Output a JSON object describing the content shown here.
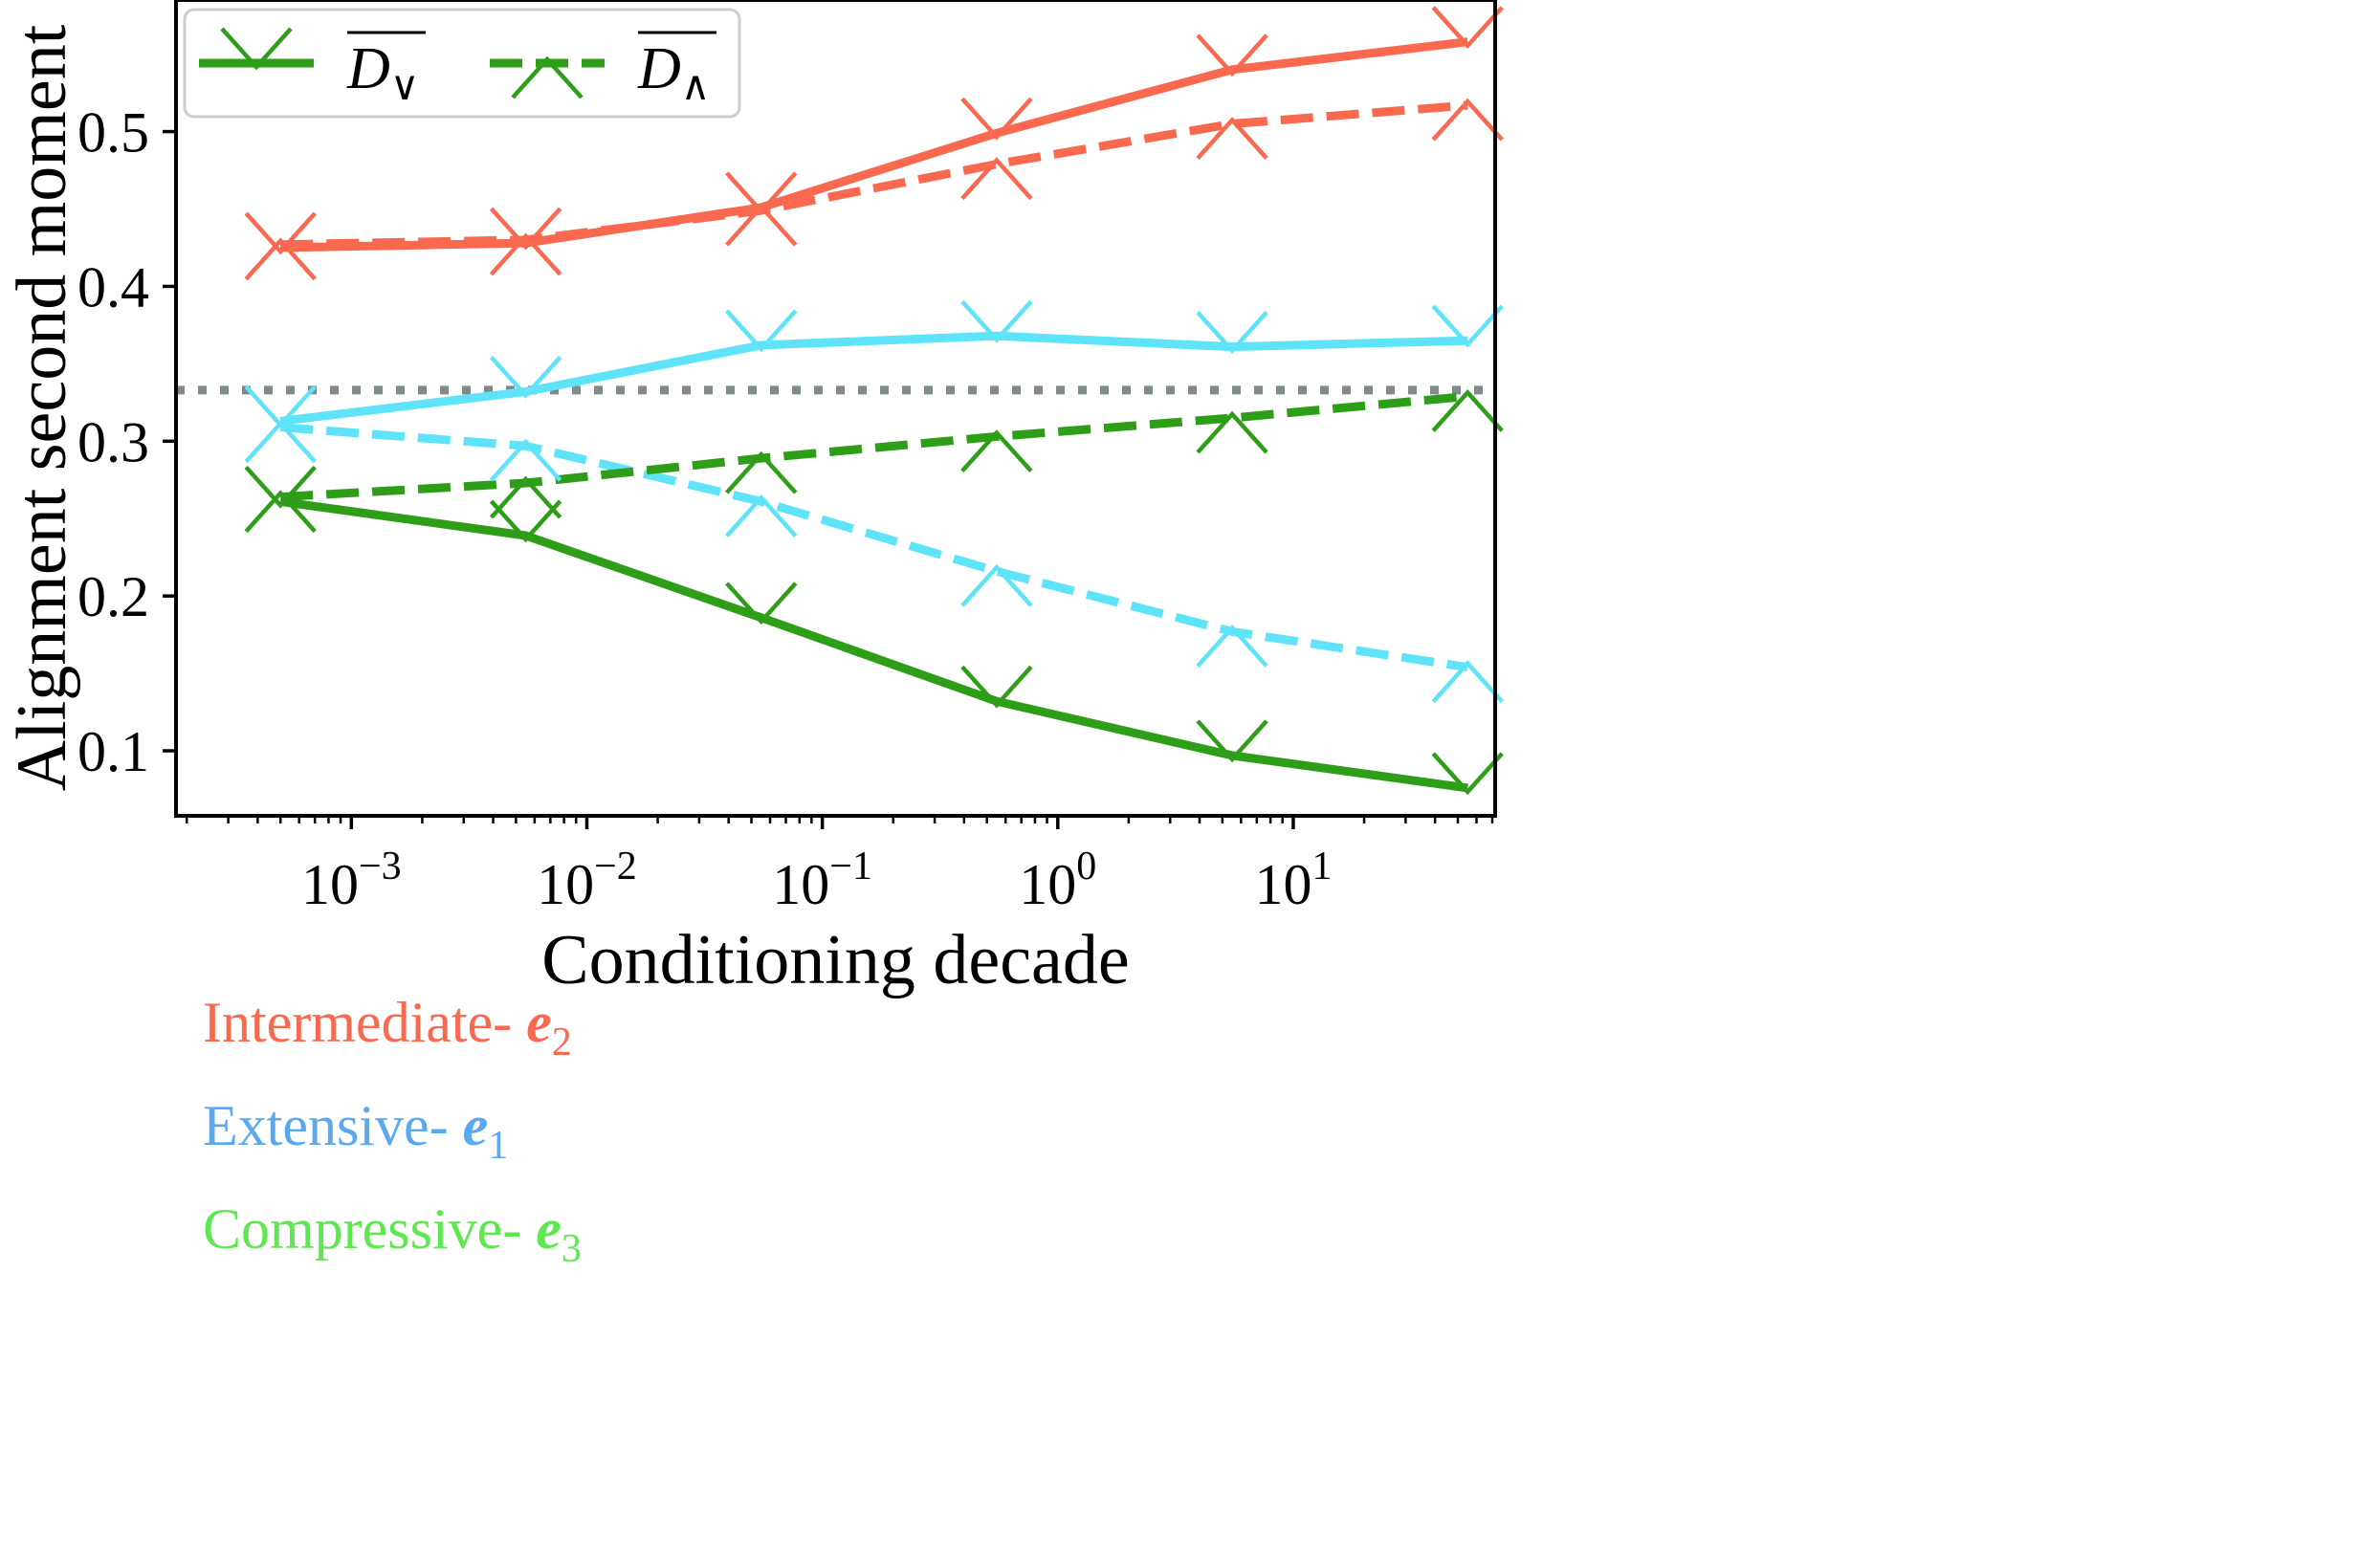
{
  "colors": {
    "intermediate": "#f9694f",
    "extensive": "#5fe3f9",
    "compressive": "#2e9e18",
    "reference": "#808a8a",
    "ann_intermediate": "#f9694f",
    "ann_extensive": "#5aa8f0",
    "ann_compressive": "#5ee84f"
  },
  "chart_data": {
    "type": "line",
    "xscale": "log",
    "xlim": [
      0.00018,
      72
    ],
    "ylim": [
      0.058,
      0.585
    ],
    "xlabel": "Conditioning decade",
    "ylabel": "Alignment second moment",
    "x_ticks": [
      {
        "value": 0.001,
        "base": "10",
        "exp": "−3"
      },
      {
        "value": 0.01,
        "base": "10",
        "exp": "−2"
      },
      {
        "value": 0.1,
        "base": "10",
        "exp": "−1"
      },
      {
        "value": 1,
        "base": "10",
        "exp": "0"
      },
      {
        "value": 10,
        "base": "10",
        "exp": "1"
      }
    ],
    "y_ticks": [
      {
        "value": 0.1,
        "label": "0.1"
      },
      {
        "value": 0.2,
        "label": "0.2"
      },
      {
        "value": 0.3,
        "label": "0.3"
      },
      {
        "value": 0.4,
        "label": "0.4"
      },
      {
        "value": 0.5,
        "label": "0.5"
      }
    ],
    "x": [
      0.0005,
      0.0055,
      0.055,
      0.55,
      5.5,
      55
    ],
    "reference_line": 0.333,
    "grid": false,
    "legend_position": "top-left",
    "legend": [
      {
        "symbol": "D",
        "sub": "∨",
        "style": "solid",
        "marker": "down"
      },
      {
        "symbol": "D",
        "sub": "∧",
        "style": "dashed",
        "marker": "up"
      }
    ],
    "series": [
      {
        "color_key": "intermediate",
        "style": "solid",
        "marker": "down",
        "values": [
          0.425,
          0.428,
          0.451,
          0.499,
          0.54,
          0.558
        ]
      },
      {
        "color_key": "intermediate",
        "style": "dashed",
        "marker": "up",
        "values": [
          0.427,
          0.43,
          0.449,
          0.479,
          0.505,
          0.517
        ]
      },
      {
        "color_key": "extensive",
        "style": "solid",
        "marker": "down",
        "values": [
          0.313,
          0.332,
          0.362,
          0.368,
          0.361,
          0.365
        ]
      },
      {
        "color_key": "extensive",
        "style": "dashed",
        "marker": "up",
        "values": [
          0.309,
          0.297,
          0.261,
          0.216,
          0.177,
          0.154
        ]
      },
      {
        "color_key": "compressive",
        "style": "solid",
        "marker": "down",
        "values": [
          0.261,
          0.239,
          0.186,
          0.132,
          0.097,
          0.076
        ]
      },
      {
        "color_key": "compressive",
        "style": "dashed",
        "marker": "up",
        "values": [
          0.264,
          0.273,
          0.289,
          0.303,
          0.315,
          0.329
        ]
      }
    ],
    "annotations": [
      {
        "text": "Intermediate- ",
        "symbol": "e",
        "sub": "2",
        "color_key": "ann_intermediate"
      },
      {
        "text": "Extensive- ",
        "symbol": "e",
        "sub": "1",
        "color_key": "ann_extensive"
      },
      {
        "text": "Compressive- ",
        "symbol": "e",
        "sub": "3",
        "color_key": "ann_compressive"
      }
    ]
  }
}
